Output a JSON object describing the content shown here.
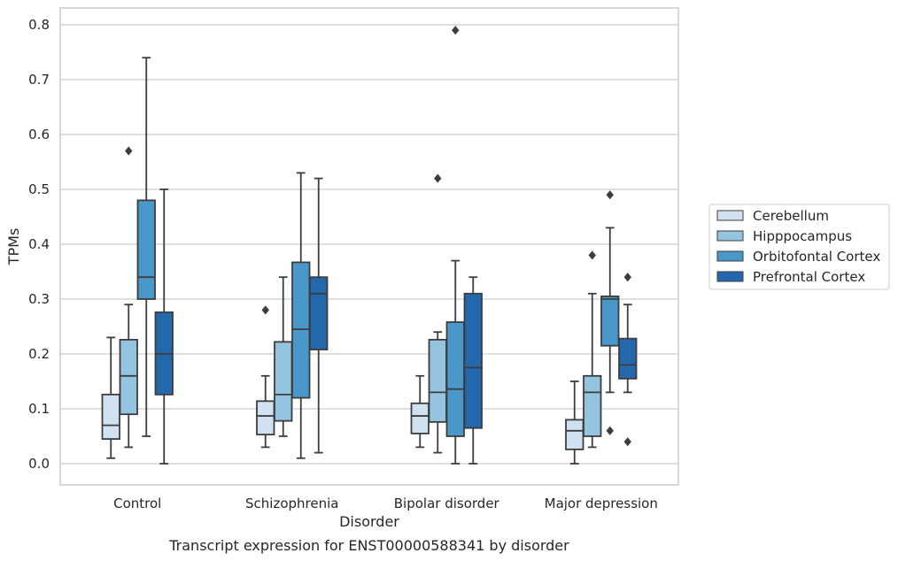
{
  "chart_data": {
    "type": "boxplot",
    "xlabel": "Disorder",
    "ylabel": "TPMs",
    "caption": "Transcript expression for ENST00000588341 by disorder",
    "ylim": [
      -0.04,
      0.83
    ],
    "yticks": [
      0.0,
      0.1,
      0.2,
      0.3,
      0.4,
      0.5,
      0.6,
      0.7,
      0.8
    ],
    "ytick_labels": [
      "0.0",
      "0.1",
      "0.2",
      "0.3",
      "0.4",
      "0.5",
      "0.6",
      "0.7",
      "0.8"
    ],
    "grid": "horizontal",
    "legend_position": "right",
    "categories": [
      "Control",
      "Schizophrenia",
      "Bipolar disorder",
      "Major depression"
    ],
    "series": [
      {
        "name": "Cerebellum",
        "color": "#d0e1f2",
        "boxes": [
          {
            "whisker_low": 0.01,
            "q1": 0.045,
            "median": 0.07,
            "q3": 0.126,
            "whisker_high": 0.23,
            "outliers": []
          },
          {
            "whisker_low": 0.03,
            "q1": 0.053,
            "median": 0.087,
            "q3": 0.114,
            "whisker_high": 0.16,
            "outliers": [
              0.28
            ]
          },
          {
            "whisker_low": 0.03,
            "q1": 0.055,
            "median": 0.087,
            "q3": 0.11,
            "whisker_high": 0.16,
            "outliers": []
          },
          {
            "whisker_low": 0.0,
            "q1": 0.026,
            "median": 0.06,
            "q3": 0.08,
            "whisker_high": 0.15,
            "outliers": []
          }
        ]
      },
      {
        "name": "Hipppocampus",
        "color": "#94c4df",
        "boxes": [
          {
            "whisker_low": 0.03,
            "q1": 0.09,
            "median": 0.16,
            "q3": 0.226,
            "whisker_high": 0.29,
            "outliers": [
              0.57
            ]
          },
          {
            "whisker_low": 0.05,
            "q1": 0.078,
            "median": 0.126,
            "q3": 0.222,
            "whisker_high": 0.34,
            "outliers": []
          },
          {
            "whisker_low": 0.02,
            "q1": 0.076,
            "median": 0.13,
            "q3": 0.226,
            "whisker_high": 0.24,
            "outliers": [
              0.52
            ]
          },
          {
            "whisker_low": 0.03,
            "q1": 0.05,
            "median": 0.13,
            "q3": 0.16,
            "whisker_high": 0.31,
            "outliers": [
              0.38
            ]
          }
        ]
      },
      {
        "name": "Orbitofontal Cortex",
        "color": "#4a98c9",
        "boxes": [
          {
            "whisker_low": 0.05,
            "q1": 0.3,
            "median": 0.34,
            "q3": 0.48,
            "whisker_high": 0.74,
            "outliers": []
          },
          {
            "whisker_low": 0.01,
            "q1": 0.12,
            "median": 0.245,
            "q3": 0.367,
            "whisker_high": 0.53,
            "outliers": []
          },
          {
            "whisker_low": 0.0,
            "q1": 0.05,
            "median": 0.136,
            "q3": 0.258,
            "whisker_high": 0.37,
            "outliers": [
              0.79
            ]
          },
          {
            "whisker_low": 0.13,
            "q1": 0.215,
            "median": 0.3,
            "q3": 0.305,
            "whisker_high": 0.43,
            "outliers": [
              0.49,
              0.06
            ]
          }
        ]
      },
      {
        "name": "Prefrontal Cortex",
        "color": "#2367ac",
        "boxes": [
          {
            "whisker_low": 0.0,
            "q1": 0.126,
            "median": 0.2,
            "q3": 0.276,
            "whisker_high": 0.5,
            "outliers": []
          },
          {
            "whisker_low": 0.02,
            "q1": 0.208,
            "median": 0.31,
            "q3": 0.34,
            "whisker_high": 0.52,
            "outliers": []
          },
          {
            "whisker_low": 0.0,
            "q1": 0.065,
            "median": 0.175,
            "q3": 0.31,
            "whisker_high": 0.34,
            "outliers": []
          },
          {
            "whisker_low": 0.13,
            "q1": 0.155,
            "median": 0.18,
            "q3": 0.228,
            "whisker_high": 0.29,
            "outliers": [
              0.34,
              0.04
            ]
          }
        ]
      }
    ]
  }
}
